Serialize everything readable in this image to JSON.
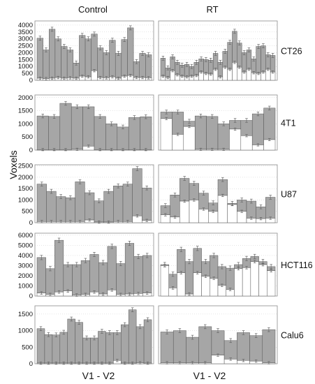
{
  "figure": {
    "column_titles": [
      "Control",
      "RT"
    ],
    "x_labels": [
      "V1 - V2",
      "V1 - V2"
    ],
    "y_label": "Voxels"
  },
  "colors": {
    "bar_fill": "#a6a6a6",
    "bar_stroke": "#555555",
    "panel_border": "#8c8c8c",
    "grid": "#bdbdbd"
  },
  "chart_data": [
    {
      "type": "bar",
      "row_label": "CT26",
      "yticks": [
        0,
        500,
        1000,
        1500,
        2000,
        2500,
        3000,
        3500,
        4000
      ],
      "ylim": [
        0,
        4300
      ],
      "control": {
        "total": [
          3050,
          2200,
          3700,
          3000,
          2450,
          2200,
          1250,
          3250,
          3000,
          3350,
          2350,
          2000,
          2900,
          1950,
          2950,
          3800,
          1350,
          1950,
          1850
        ],
        "inner": [
          150,
          120,
          150,
          200,
          150,
          180,
          150,
          300,
          250,
          700,
          200,
          180,
          250,
          150,
          300,
          350,
          200,
          200,
          180
        ]
      },
      "rt": {
        "total": [
          1600,
          900,
          1700,
          1300,
          1100,
          1150,
          1000,
          1300,
          1550,
          1500,
          1450,
          1950,
          1300,
          2100,
          2750,
          3550,
          2700,
          2000,
          2200,
          1550,
          2450,
          2500,
          1850,
          1800
        ],
        "inner": [
          300,
          200,
          700,
          400,
          300,
          250,
          300,
          350,
          600,
          500,
          450,
          800,
          250,
          950,
          800,
          1300,
          950,
          600,
          800,
          550,
          500,
          600,
          800,
          600
        ]
      }
    },
    {
      "type": "bar",
      "row_label": "4T1",
      "yticks": [
        0,
        500,
        1000,
        1500,
        2000
      ],
      "ylim": [
        0,
        2100
      ],
      "control": {
        "total": [
          1300,
          1280,
          1780,
          1650,
          1650,
          1280,
          1000,
          880,
          1240,
          1270
        ],
        "inner": [
          20,
          20,
          20,
          30,
          150,
          20,
          20,
          20,
          20,
          20
        ]
      },
      "rt": {
        "total": [
          1450,
          1450,
          1100,
          1300,
          1280,
          1000,
          1130,
          1130,
          1380,
          1600
        ],
        "inner": [
          1200,
          600,
          900,
          30,
          30,
          30,
          800,
          550,
          200,
          400
        ]
      }
    },
    {
      "type": "bar",
      "row_label": "U87",
      "yticks": [
        0,
        500,
        1000,
        1500,
        2000,
        2500
      ],
      "ylim": [
        0,
        2550
      ],
      "control": {
        "total": [
          1700,
          1380,
          1150,
          1100,
          1800,
          1320,
          960,
          1380,
          1620,
          1700,
          2380,
          1530
        ],
        "inner": [
          50,
          50,
          50,
          50,
          50,
          120,
          30,
          30,
          50,
          50,
          300,
          100
        ]
      },
      "rt": {
        "total": [
          750,
          1220,
          1950,
          1730,
          1300,
          870,
          1900,
          850,
          1000,
          950,
          700,
          1120
        ],
        "inner": [
          350,
          250,
          950,
          1000,
          600,
          500,
          1200,
          800,
          500,
          200,
          180,
          200
        ]
      }
    },
    {
      "type": "bar",
      "row_label": "HCT116",
      "yticks": [
        0,
        1000,
        2000,
        3000,
        4000,
        5000,
        6000
      ],
      "ylim": [
        0,
        6200
      ],
      "control": {
        "total": [
          3800,
          2700,
          5500,
          3100,
          3100,
          3500,
          4100,
          3300,
          4900,
          3200,
          5200,
          3900,
          4000
        ],
        "inner": [
          300,
          150,
          400,
          500,
          100,
          150,
          400,
          200,
          600,
          150,
          200,
          250,
          300
        ]
      },
      "rt": {
        "total": [
          3100,
          2150,
          4600,
          3400,
          4700,
          3400,
          4000,
          2900,
          2750,
          3100,
          3700,
          3900,
          3400,
          2900
        ],
        "inner": [
          3000,
          800,
          2300,
          200,
          2300,
          1950,
          1750,
          1050,
          650,
          2700,
          2800,
          3400,
          3100,
          2500
        ]
      }
    },
    {
      "type": "bar",
      "row_label": "Calu6",
      "yticks": [
        0,
        500,
        1000,
        1500
      ],
      "ylim": [
        0,
        1750
      ],
      "control": {
        "total": [
          1060,
          880,
          870,
          950,
          1350,
          1250,
          780,
          780,
          980,
          940,
          940,
          1180,
          1630,
          1120,
          1330
        ],
        "inner": [
          20,
          20,
          20,
          20,
          20,
          20,
          20,
          20,
          20,
          20,
          100,
          20,
          20,
          30,
          20
        ]
      },
      "rt": {
        "total": [
          960,
          1000,
          800,
          1120,
          1000,
          700,
          940,
          850,
          1030
        ],
        "inner": [
          30,
          30,
          30,
          30,
          260,
          140,
          100,
          80,
          30
        ]
      }
    }
  ]
}
